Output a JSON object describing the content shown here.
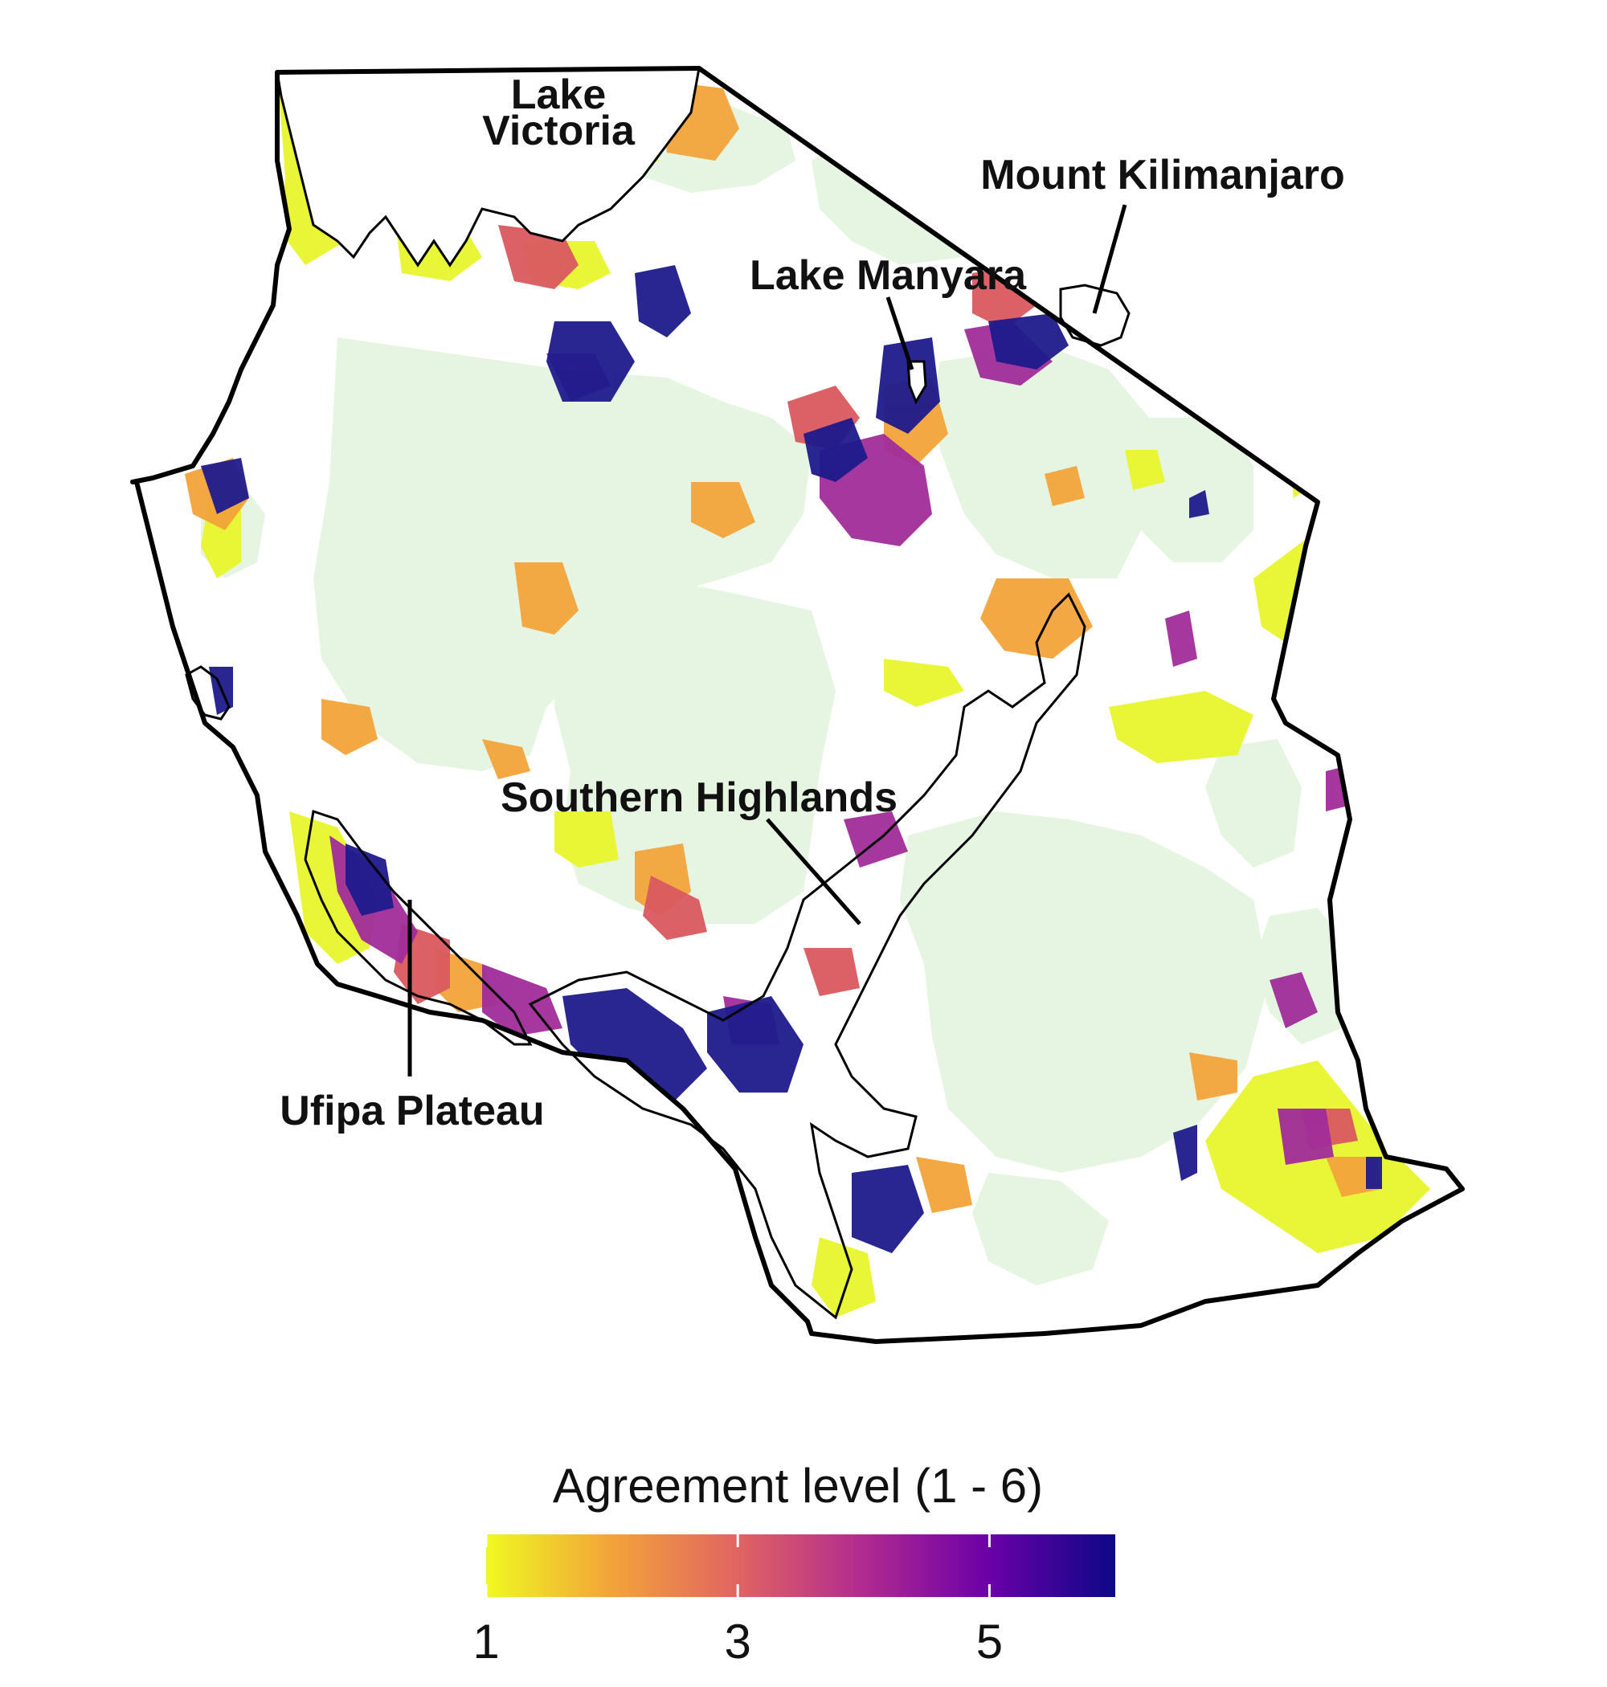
{
  "map": {
    "labels": {
      "lake_victoria_line1": "Lake",
      "lake_victoria_line2": "Victoria",
      "mount_kilimanjaro": "Mount Kilimanjaro",
      "lake_manyara": "Lake Manyara",
      "southern_highlands": "Southern Highlands",
      "ufipa_plateau": "Ufipa Plateau"
    },
    "colors": {
      "border": "#000000",
      "protected_area": "#e6f5e1",
      "background": "#ffffff"
    }
  },
  "legend": {
    "title": "Agreement level (1 - 6)",
    "min": 1,
    "max": 6,
    "ticks": [
      {
        "value": 1,
        "label": "1"
      },
      {
        "value": 3,
        "label": "3"
      },
      {
        "value": 5,
        "label": "5"
      }
    ],
    "colormap": "plasma-reversed",
    "color_stops": [
      "#f0f921",
      "#f2a33a",
      "#e16462",
      "#b12a90",
      "#6a00a8",
      "#0d0887"
    ]
  }
}
